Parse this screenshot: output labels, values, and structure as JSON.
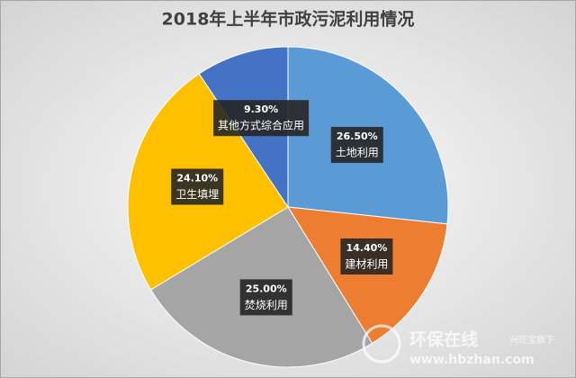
{
  "chart_data": {
    "type": "pie",
    "title": "2018年上半年市政污泥利用情况",
    "categories": [
      "土地利用",
      "建材利用",
      "焚烧利用",
      "卫生填埋",
      "其他方式综合应用"
    ],
    "values": [
      26.5,
      14.4,
      25.0,
      24.1,
      9.3
    ],
    "value_labels": [
      "26.50%",
      "14.40%",
      "25.00%",
      "24.10%",
      "9.30%"
    ],
    "colors": [
      "#5b9bd5",
      "#ed7d31",
      "#a5a5a5",
      "#ffc000",
      "#4472c4"
    ]
  },
  "watermark": {
    "brand": "环保在线",
    "tagline": "兴旺宝旗下",
    "url": "www.hbzhan.com"
  }
}
